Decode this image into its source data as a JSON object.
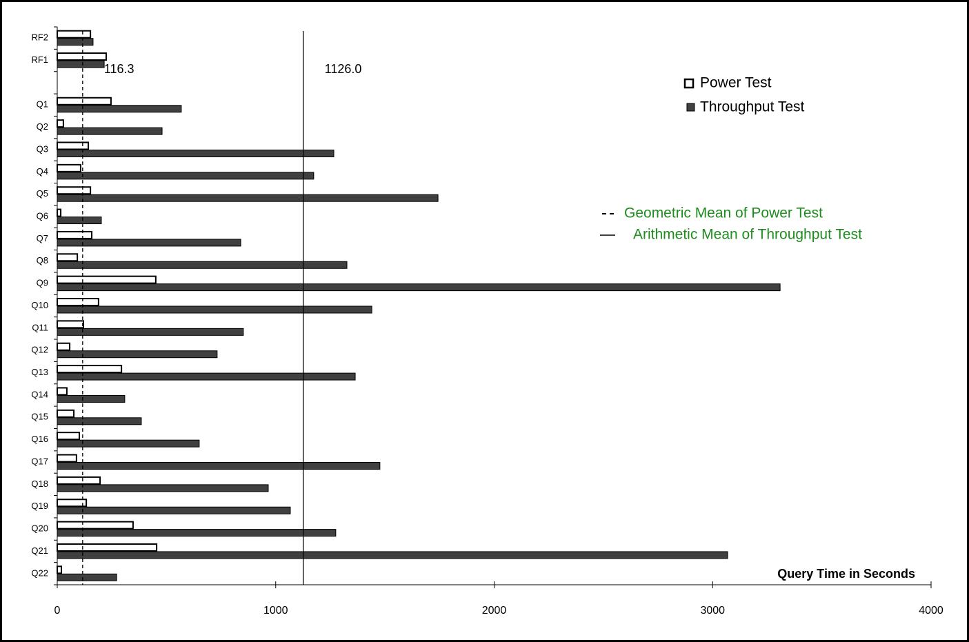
{
  "chart_data": {
    "type": "barh",
    "x_label": "Query Time in Seconds",
    "categories": [
      "RF2",
      "RF1",
      null,
      "Q1",
      "Q2",
      "Q3",
      "Q4",
      "Q5",
      "Q6",
      "Q7",
      "Q8",
      "Q9",
      "Q10",
      "Q11",
      "Q12",
      "Q13",
      "Q14",
      "Q15",
      "Q16",
      "Q17",
      "Q18",
      "Q19",
      "Q20",
      "Q21",
      "Q22"
    ],
    "series": [
      {
        "name": "Power Test",
        "color": "#ffffff",
        "stroke": "#000000",
        "values": [
          152,
          224,
          null,
          246,
          28,
          142,
          107,
          152,
          16,
          158,
          92,
          451,
          189,
          120,
          57,
          294,
          44,
          76,
          101,
          88,
          196,
          133,
          347,
          455,
          19
        ]
      },
      {
        "name": "Throughput Test",
        "color": "#404040",
        "stroke": "#000000",
        "values": [
          164,
          215,
          null,
          568,
          480,
          1266,
          1174,
          1743,
          202,
          840,
          1326,
          3309,
          1440,
          852,
          732,
          1364,
          309,
          385,
          650,
          1477,
          966,
          1067,
          1275,
          3069,
          272
        ]
      }
    ],
    "reference_lines": [
      {
        "name": "Geometric Mean of Power Test",
        "value": 116.3,
        "label": "116.3",
        "style": "dashed",
        "color": "#000000",
        "label_color": "#1e8c1e"
      },
      {
        "name": "Arithmetic Mean of Throughput Test",
        "value": 1126,
        "label": "1126.0",
        "style": "solid",
        "color": "#000000",
        "label_color": "#1e8c1e"
      }
    ],
    "xlim": [
      0,
      4000
    ],
    "xticks": [
      0,
      1000,
      2000,
      3000,
      4000
    ],
    "grid": false
  }
}
